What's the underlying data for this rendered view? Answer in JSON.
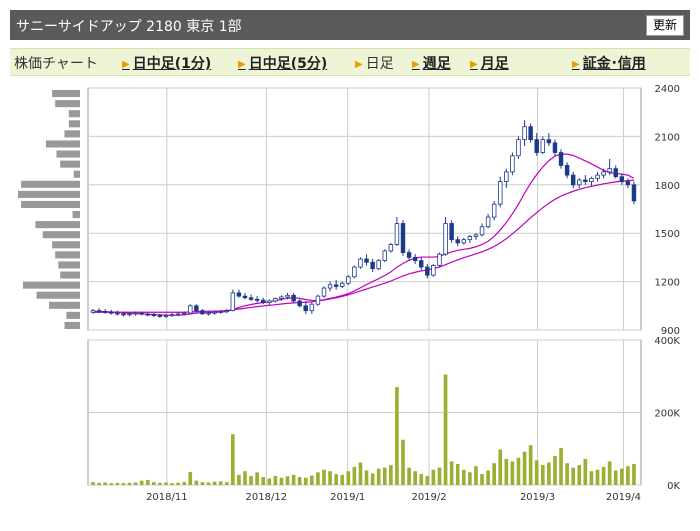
{
  "header": {
    "title": "サニーサイドアップ  2180  東京 1部",
    "refresh_label": "更新"
  },
  "nav": {
    "label": "株価チャート",
    "items": [
      {
        "label": "日中足(1分)",
        "link": true
      },
      {
        "label": "日中足(5分)",
        "link": true
      },
      {
        "label": "日足",
        "link": false
      },
      {
        "label": "週足",
        "link": true
      },
      {
        "label": "月足",
        "link": true
      },
      {
        "label": "証金･信用",
        "link": true
      }
    ]
  },
  "colors": {
    "up_candle": "#ffffff",
    "down_candle": "#1a3a8a",
    "candle_outline": "#1a3a8a",
    "moving_average": "#c000c0",
    "volume_bar": "#99b033",
    "volume_profile": "#999999",
    "grid": "#cccccc",
    "nav_arrow": "#e8a000"
  },
  "chart_data": [
    {
      "type": "candlestick",
      "ylim": [
        900,
        2400
      ],
      "yticks": [
        "2400",
        "2100",
        "1800",
        "1500",
        "1200",
        "900"
      ],
      "xticks": [
        "2018/11",
        "2018/12",
        "2019/1",
        "2019/2",
        "2019/3",
        "2019/4"
      ],
      "ohlc": [
        [
          1010,
          1030,
          1000,
          1020
        ],
        [
          1020,
          1035,
          1005,
          1015
        ],
        [
          1015,
          1030,
          1000,
          1010
        ],
        [
          1010,
          1025,
          995,
          1005
        ],
        [
          1005,
          1020,
          990,
          1000
        ],
        [
          1000,
          1015,
          985,
          995
        ],
        [
          995,
          1010,
          985,
          1000
        ],
        [
          1000,
          1015,
          990,
          1005
        ],
        [
          1005,
          1015,
          990,
          998
        ],
        [
          998,
          1010,
          985,
          995
        ],
        [
          995,
          1005,
          980,
          990
        ],
        [
          990,
          1000,
          975,
          985
        ],
        [
          985,
          1000,
          975,
          990
        ],
        [
          990,
          1005,
          980,
          995
        ],
        [
          995,
          1010,
          985,
          1000
        ],
        [
          1000,
          1015,
          990,
          1005
        ],
        [
          1005,
          1060,
          1000,
          1050
        ],
        [
          1050,
          1060,
          1010,
          1020
        ],
        [
          1020,
          1030,
          995,
          1000
        ],
        [
          1000,
          1015,
          990,
          1005
        ],
        [
          1005,
          1020,
          995,
          1010
        ],
        [
          1010,
          1025,
          1000,
          1015
        ],
        [
          1015,
          1030,
          1005,
          1020
        ],
        [
          1020,
          1150,
          1015,
          1130
        ],
        [
          1130,
          1150,
          1100,
          1110
        ],
        [
          1110,
          1130,
          1090,
          1100
        ],
        [
          1100,
          1120,
          1080,
          1090
        ],
        [
          1090,
          1110,
          1070,
          1085
        ],
        [
          1085,
          1100,
          1060,
          1070
        ],
        [
          1070,
          1090,
          1050,
          1080
        ],
        [
          1080,
          1100,
          1070,
          1095
        ],
        [
          1095,
          1115,
          1080,
          1105
        ],
        [
          1105,
          1130,
          1090,
          1115
        ],
        [
          1115,
          1130,
          1070,
          1080
        ],
        [
          1080,
          1090,
          1040,
          1050
        ],
        [
          1050,
          1080,
          1000,
          1020
        ],
        [
          1020,
          1070,
          1000,
          1060
        ],
        [
          1060,
          1120,
          1050,
          1110
        ],
        [
          1110,
          1170,
          1100,
          1160
        ],
        [
          1160,
          1200,
          1140,
          1180
        ],
        [
          1180,
          1210,
          1150,
          1170
        ],
        [
          1170,
          1200,
          1160,
          1190
        ],
        [
          1190,
          1240,
          1180,
          1230
        ],
        [
          1230,
          1300,
          1220,
          1290
        ],
        [
          1290,
          1350,
          1280,
          1340
        ],
        [
          1340,
          1370,
          1300,
          1320
        ],
        [
          1320,
          1340,
          1260,
          1280
        ],
        [
          1280,
          1340,
          1270,
          1330
        ],
        [
          1330,
          1400,
          1320,
          1390
        ],
        [
          1390,
          1440,
          1380,
          1430
        ],
        [
          1430,
          1600,
          1420,
          1560
        ],
        [
          1560,
          1580,
          1360,
          1380
        ],
        [
          1380,
          1400,
          1330,
          1350
        ],
        [
          1350,
          1370,
          1310,
          1330
        ],
        [
          1330,
          1350,
          1270,
          1290
        ],
        [
          1290,
          1310,
          1220,
          1240
        ],
        [
          1240,
          1310,
          1230,
          1300
        ],
        [
          1300,
          1380,
          1290,
          1370
        ],
        [
          1370,
          1600,
          1360,
          1560
        ],
        [
          1560,
          1580,
          1440,
          1460
        ],
        [
          1460,
          1480,
          1420,
          1440
        ],
        [
          1440,
          1470,
          1430,
          1460
        ],
        [
          1460,
          1490,
          1440,
          1480
        ],
        [
          1480,
          1500,
          1460,
          1490
        ],
        [
          1490,
          1560,
          1480,
          1540
        ],
        [
          1540,
          1620,
          1530,
          1600
        ],
        [
          1600,
          1700,
          1580,
          1680
        ],
        [
          1680,
          1850,
          1660,
          1820
        ],
        [
          1820,
          1900,
          1780,
          1880
        ],
        [
          1880,
          2000,
          1860,
          1980
        ],
        [
          1980,
          2100,
          1960,
          2080
        ],
        [
          2080,
          2200,
          2040,
          2160
        ],
        [
          2160,
          2180,
          2060,
          2080
        ],
        [
          2080,
          2120,
          1980,
          2000
        ],
        [
          2000,
          2100,
          1990,
          2080
        ],
        [
          2080,
          2120,
          2040,
          2060
        ],
        [
          2060,
          2080,
          1980,
          2000
        ],
        [
          2000,
          2020,
          1900,
          1920
        ],
        [
          1920,
          1940,
          1840,
          1860
        ],
        [
          1860,
          1880,
          1780,
          1800
        ],
        [
          1800,
          1840,
          1780,
          1830
        ],
        [
          1830,
          1860,
          1800,
          1820
        ],
        [
          1820,
          1850,
          1790,
          1840
        ],
        [
          1840,
          1880,
          1820,
          1860
        ],
        [
          1860,
          1900,
          1840,
          1880
        ],
        [
          1880,
          1960,
          1860,
          1900
        ],
        [
          1900,
          1920,
          1840,
          1850
        ],
        [
          1850,
          1870,
          1800,
          1820
        ],
        [
          1820,
          1840,
          1780,
          1800
        ],
        [
          1800,
          1820,
          1680,
          1700
        ]
      ],
      "ma_short": [
        1015,
        1015,
        1014,
        1012,
        1010,
        1007,
        1004,
        1002,
        1000,
        998,
        996,
        994,
        992,
        991,
        992,
        994,
        1000,
        1005,
        1007,
        1008,
        1010,
        1012,
        1014,
        1028,
        1040,
        1050,
        1058,
        1065,
        1070,
        1075,
        1082,
        1090,
        1097,
        1100,
        1096,
        1089,
        1084,
        1082,
        1088,
        1096,
        1104,
        1114,
        1126,
        1142,
        1162,
        1182,
        1200,
        1218,
        1238,
        1260,
        1290,
        1312,
        1332,
        1346,
        1352,
        1352,
        1352,
        1356,
        1372,
        1384,
        1394,
        1400,
        1406,
        1416,
        1430,
        1450,
        1480,
        1520,
        1566,
        1620,
        1680,
        1748,
        1810,
        1864,
        1910,
        1950,
        1978,
        1990,
        1990,
        1982,
        1966,
        1948,
        1930,
        1910,
        1890,
        1876,
        1870,
        1866,
        1860,
        1840
      ],
      "ma_long": [
        1010,
        1010,
        1010,
        1010,
        1010,
        1010,
        1010,
        1010,
        1010,
        1010,
        1010,
        1010,
        1010,
        1010,
        1010,
        1010,
        1012,
        1014,
        1015,
        1016,
        1017,
        1018,
        1020,
        1025,
        1030,
        1035,
        1040,
        1045,
        1049,
        1053,
        1057,
        1061,
        1065,
        1068,
        1070,
        1072,
        1075,
        1080,
        1086,
        1093,
        1100,
        1108,
        1118,
        1130,
        1142,
        1154,
        1166,
        1178,
        1190,
        1203,
        1220,
        1235,
        1248,
        1258,
        1266,
        1272,
        1280,
        1290,
        1305,
        1320,
        1334,
        1348,
        1360,
        1372,
        1385,
        1400,
        1418,
        1440,
        1466,
        1496,
        1528,
        1562,
        1596,
        1628,
        1658,
        1686,
        1710,
        1730,
        1746,
        1760,
        1772,
        1782,
        1790,
        1798,
        1806,
        1812,
        1818,
        1822,
        1826,
        1828
      ]
    },
    {
      "type": "bar",
      "ylim": [
        0,
        400
      ],
      "yticks": [
        "400K",
        "200K",
        "0K"
      ],
      "values": [
        8,
        6,
        7,
        5,
        6,
        5,
        6,
        7,
        12,
        14,
        8,
        6,
        7,
        5,
        6,
        8,
        36,
        12,
        8,
        7,
        9,
        10,
        8,
        140,
        28,
        38,
        25,
        35,
        22,
        18,
        25,
        20,
        24,
        28,
        22,
        20,
        26,
        35,
        42,
        38,
        30,
        28,
        38,
        50,
        62,
        40,
        32,
        45,
        48,
        55,
        270,
        125,
        48,
        38,
        30,
        25,
        42,
        48,
        305,
        65,
        58,
        42,
        35,
        52,
        30,
        40,
        60,
        98,
        72,
        65,
        75,
        92,
        110,
        68,
        55,
        62,
        80,
        102,
        60,
        48,
        55,
        72,
        38,
        42,
        50,
        65,
        40,
        45,
        52,
        58
      ]
    }
  ],
  "volume_profile": [
    0.45,
    0.4,
    0.18,
    0.18,
    0.25,
    0.55,
    0.38,
    0.32,
    0.1,
    0.95,
    1.0,
    0.95,
    0.12,
    0.72,
    0.6,
    0.45,
    0.4,
    0.35,
    0.32,
    0.92,
    0.7,
    0.5,
    0.22,
    0.25
  ]
}
